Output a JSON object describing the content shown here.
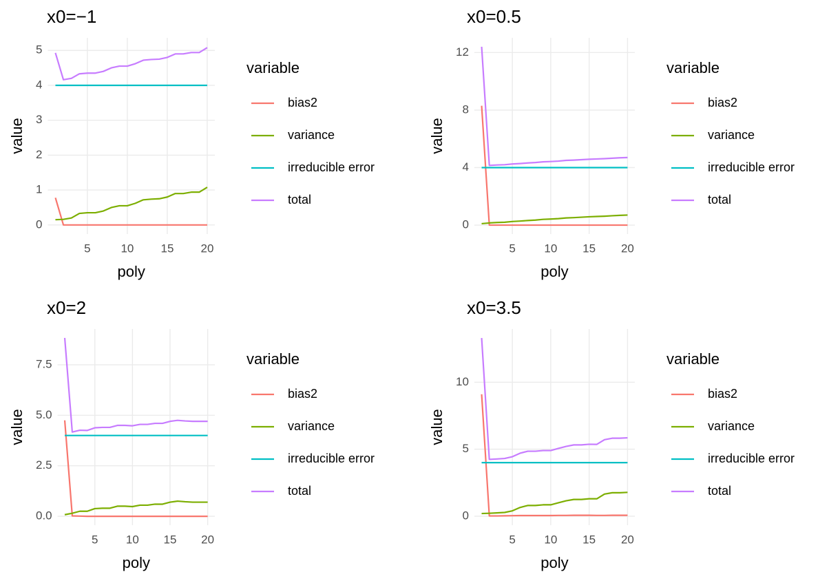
{
  "chart_data": [
    {
      "type": "line",
      "title": "x0=−1",
      "xlabel": "poly",
      "ylabel": "value",
      "legend_title": "variable",
      "grid": true,
      "x": [
        1,
        2,
        3,
        4,
        5,
        6,
        7,
        8,
        9,
        10,
        11,
        12,
        13,
        14,
        15,
        16,
        17,
        18,
        19,
        20
      ],
      "xlim": [
        0.05,
        20.95
      ],
      "xticks": [
        5,
        10,
        15,
        20
      ],
      "ylim": [
        -0.26,
        5.36
      ],
      "yticks": [
        0,
        1,
        2,
        3,
        4,
        5
      ],
      "series": [
        {
          "name": "bias2",
          "color": "#F8766D",
          "values": [
            0.78,
            0,
            0,
            0,
            0,
            0,
            0,
            0,
            0,
            0,
            0,
            0,
            0,
            0,
            0,
            0,
            0,
            0,
            0,
            0
          ]
        },
        {
          "name": "variance",
          "color": "#7CAE00",
          "values": [
            0.15,
            0.16,
            0.2,
            0.33,
            0.35,
            0.35,
            0.4,
            0.5,
            0.55,
            0.55,
            0.62,
            0.72,
            0.74,
            0.75,
            0.8,
            0.9,
            0.9,
            0.94,
            0.94,
            1.08
          ]
        },
        {
          "name": "irreducible error",
          "color": "#00BFC4",
          "values": [
            4,
            4,
            4,
            4,
            4,
            4,
            4,
            4,
            4,
            4,
            4,
            4,
            4,
            4,
            4,
            4,
            4,
            4,
            4,
            4
          ]
        },
        {
          "name": "total",
          "color": "#C77CFF",
          "values": [
            4.93,
            4.16,
            4.2,
            4.33,
            4.35,
            4.35,
            4.4,
            4.5,
            4.55,
            4.55,
            4.62,
            4.72,
            4.74,
            4.75,
            4.8,
            4.9,
            4.9,
            4.94,
            4.94,
            5.08
          ]
        }
      ]
    },
    {
      "type": "line",
      "title": "x0=0.5",
      "xlabel": "poly",
      "ylabel": "value",
      "legend_title": "variable",
      "grid": true,
      "x": [
        1,
        2,
        3,
        4,
        5,
        6,
        7,
        8,
        9,
        10,
        11,
        12,
        13,
        14,
        15,
        16,
        17,
        18,
        19,
        20
      ],
      "xlim": [
        0.05,
        20.95
      ],
      "xticks": [
        5,
        10,
        15,
        20
      ],
      "ylim": [
        -0.62,
        13.02
      ],
      "yticks": [
        0,
        4,
        8,
        12
      ],
      "series": [
        {
          "name": "bias2",
          "color": "#F8766D",
          "values": [
            8.3,
            0,
            0,
            0,
            0,
            0,
            0,
            0,
            0,
            0,
            0,
            0,
            0,
            0,
            0,
            0,
            0,
            0,
            0,
            0
          ]
        },
        {
          "name": "variance",
          "color": "#7CAE00",
          "values": [
            0.1,
            0.15,
            0.18,
            0.2,
            0.25,
            0.28,
            0.32,
            0.35,
            0.4,
            0.42,
            0.45,
            0.5,
            0.52,
            0.55,
            0.58,
            0.6,
            0.62,
            0.65,
            0.68,
            0.7
          ]
        },
        {
          "name": "irreducible error",
          "color": "#00BFC4",
          "values": [
            4,
            4,
            4,
            4,
            4,
            4,
            4,
            4,
            4,
            4,
            4,
            4,
            4,
            4,
            4,
            4,
            4,
            4,
            4,
            4
          ]
        },
        {
          "name": "total",
          "color": "#C77CFF",
          "values": [
            12.4,
            4.15,
            4.18,
            4.2,
            4.25,
            4.28,
            4.32,
            4.35,
            4.4,
            4.42,
            4.45,
            4.5,
            4.52,
            4.55,
            4.58,
            4.6,
            4.62,
            4.65,
            4.68,
            4.7
          ]
        }
      ]
    },
    {
      "type": "line",
      "title": "x0=2",
      "xlabel": "poly",
      "ylabel": "value",
      "legend_title": "variable",
      "grid": true,
      "x": [
        1,
        2,
        3,
        4,
        5,
        6,
        7,
        8,
        9,
        10,
        11,
        12,
        13,
        14,
        15,
        16,
        17,
        18,
        19,
        20
      ],
      "xlim": [
        0.05,
        20.95
      ],
      "xticks": [
        5,
        10,
        15,
        20
      ],
      "ylim": [
        -0.44,
        9.27
      ],
      "yticks": [
        {
          "value": 0,
          "label": "0.0"
        },
        2.5,
        {
          "value": 5,
          "label": "5.0"
        },
        7.5
      ],
      "series": [
        {
          "name": "bias2",
          "color": "#F8766D",
          "values": [
            4.75,
            0.02,
            0.01,
            0,
            0,
            0,
            0,
            0,
            0,
            0,
            0,
            0,
            0,
            0,
            0,
            0,
            0,
            0,
            0,
            0
          ]
        },
        {
          "name": "variance",
          "color": "#7CAE00",
          "values": [
            0.08,
            0.15,
            0.25,
            0.25,
            0.38,
            0.4,
            0.4,
            0.5,
            0.5,
            0.48,
            0.55,
            0.55,
            0.6,
            0.6,
            0.7,
            0.75,
            0.72,
            0.7,
            0.7,
            0.7
          ]
        },
        {
          "name": "irreducible error",
          "color": "#00BFC4",
          "values": [
            4,
            4,
            4,
            4,
            4,
            4,
            4,
            4,
            4,
            4,
            4,
            4,
            4,
            4,
            4,
            4,
            4,
            4,
            4,
            4
          ]
        },
        {
          "name": "total",
          "color": "#C77CFF",
          "values": [
            8.83,
            4.17,
            4.26,
            4.25,
            4.38,
            4.4,
            4.4,
            4.5,
            4.5,
            4.48,
            4.55,
            4.55,
            4.6,
            4.6,
            4.7,
            4.75,
            4.72,
            4.7,
            4.7,
            4.7
          ]
        }
      ]
    },
    {
      "type": "line",
      "title": "x0=3.5",
      "xlabel": "poly",
      "ylabel": "value",
      "legend_title": "variable",
      "grid": true,
      "x": [
        1,
        2,
        3,
        4,
        5,
        6,
        7,
        8,
        9,
        10,
        11,
        12,
        13,
        14,
        15,
        16,
        17,
        18,
        19,
        20
      ],
      "xlim": [
        0.05,
        20.95
      ],
      "xticks": [
        5,
        10,
        15,
        20
      ],
      "ylim": [
        -0.67,
        13.97
      ],
      "yticks": [
        0,
        5,
        10
      ],
      "series": [
        {
          "name": "bias2",
          "color": "#F8766D",
          "values": [
            9.1,
            0.02,
            0.02,
            0.03,
            0.04,
            0.05,
            0.05,
            0.05,
            0.05,
            0.05,
            0.06,
            0.06,
            0.07,
            0.07,
            0.07,
            0.06,
            0.06,
            0.07,
            0.07,
            0.07
          ]
        },
        {
          "name": "variance",
          "color": "#7CAE00",
          "values": [
            0.2,
            0.22,
            0.25,
            0.28,
            0.4,
            0.65,
            0.8,
            0.8,
            0.85,
            0.85,
            1.0,
            1.15,
            1.25,
            1.25,
            1.3,
            1.3,
            1.65,
            1.75,
            1.75,
            1.78
          ]
        },
        {
          "name": "irreducible error",
          "color": "#00BFC4",
          "values": [
            4,
            4,
            4,
            4,
            4,
            4,
            4,
            4,
            4,
            4,
            4,
            4,
            4,
            4,
            4,
            4,
            4,
            4,
            4,
            4
          ]
        },
        {
          "name": "total",
          "color": "#C77CFF",
          "values": [
            13.3,
            4.24,
            4.27,
            4.31,
            4.44,
            4.7,
            4.85,
            4.85,
            4.9,
            4.9,
            5.06,
            5.21,
            5.32,
            5.32,
            5.37,
            5.36,
            5.71,
            5.82,
            5.82,
            5.85
          ]
        }
      ]
    }
  ]
}
